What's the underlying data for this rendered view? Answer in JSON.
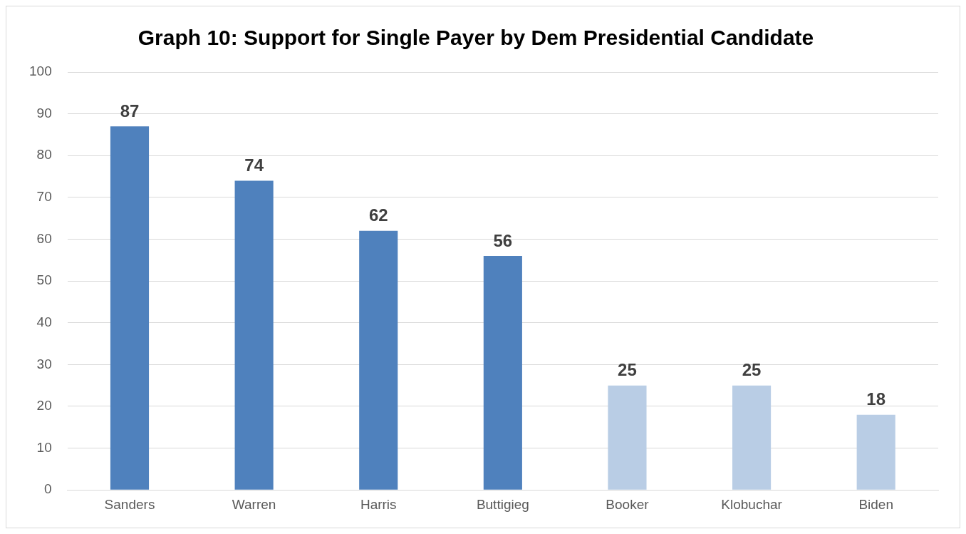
{
  "chart_data": {
    "type": "bar",
    "title": "Graph 10: Support for Single Payer by Dem Presidential Candidate",
    "categories": [
      "Sanders",
      "Warren",
      "Harris",
      "Buttigieg",
      "Booker",
      "Klobuchar",
      "Biden"
    ],
    "values": [
      87,
      74,
      62,
      56,
      25,
      25,
      18
    ],
    "colors": [
      "#4f81bd",
      "#4f81bd",
      "#4f81bd",
      "#4f81bd",
      "#b9cde5",
      "#b9cde5",
      "#b9cde5"
    ],
    "ylim": [
      0,
      100
    ],
    "yticks": [
      0,
      10,
      20,
      30,
      40,
      50,
      60,
      70,
      80,
      90,
      100
    ],
    "grid": "y",
    "data_labels": true
  }
}
